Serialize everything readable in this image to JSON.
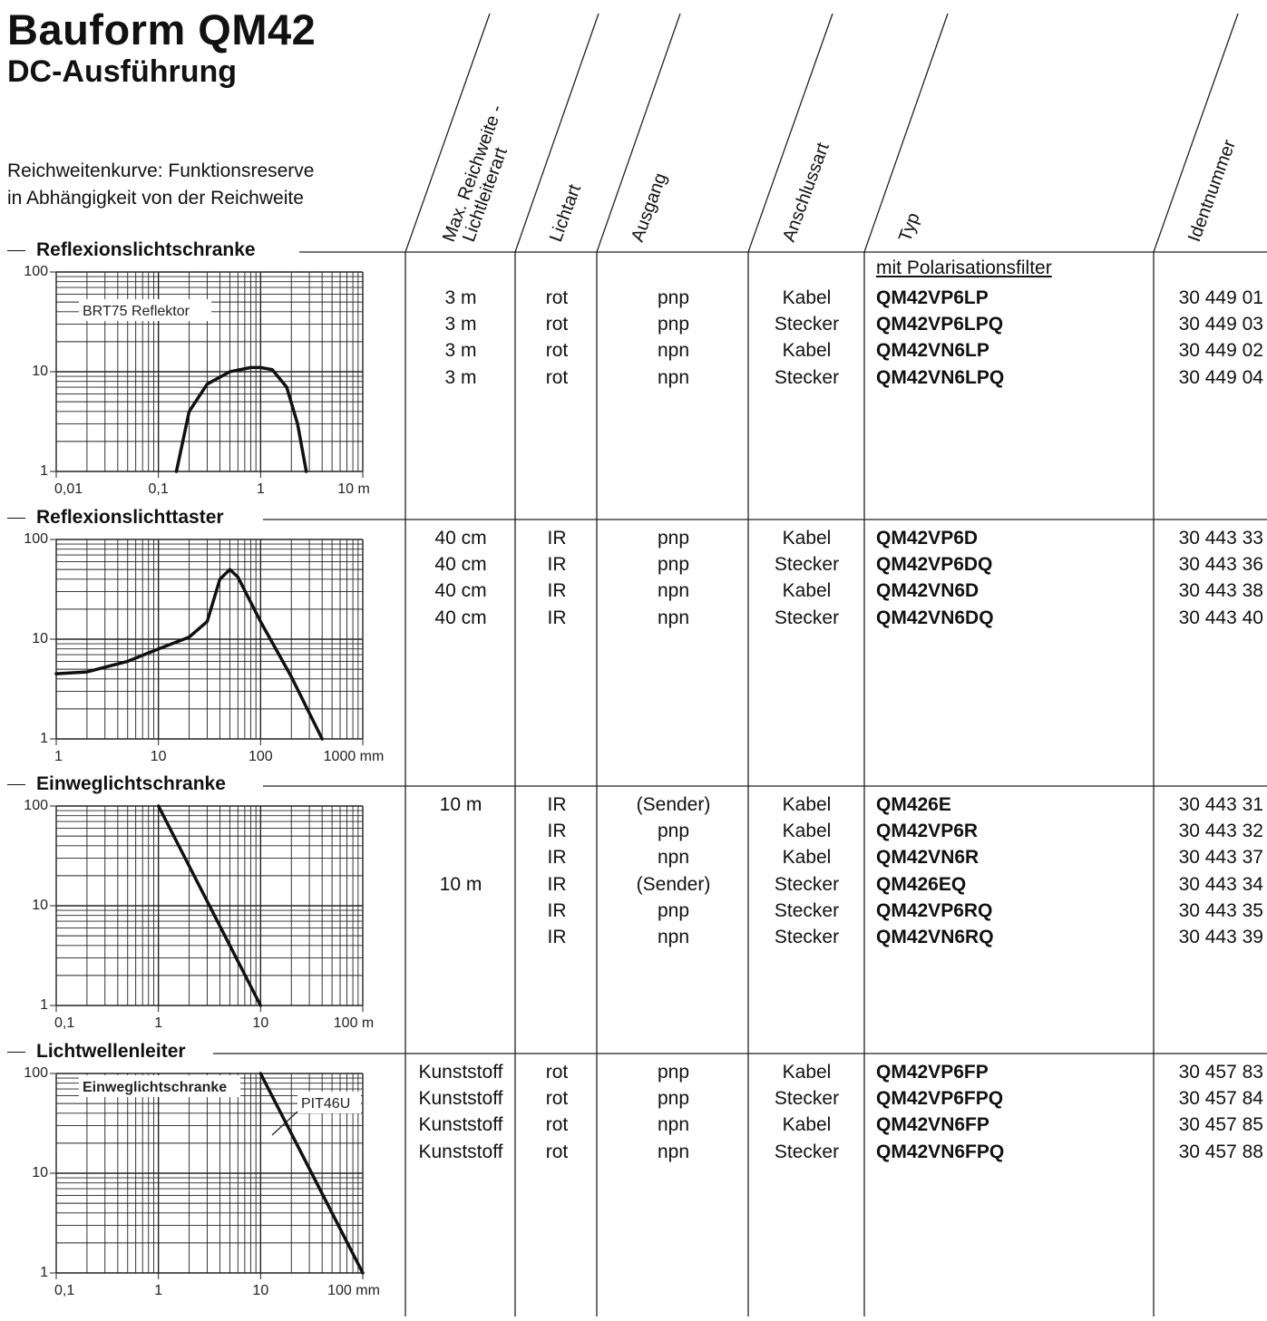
{
  "header": {
    "title": "Bauform QM42",
    "subtitle": "DC-Ausführung",
    "intro_line1": "Reichweitenkurve: Funktionsreserve",
    "intro_line2": "in Abhängigkeit von der Reichweite"
  },
  "columns": {
    "reach_1": "Max. Reichweite -",
    "reach_2": "Lichtleiterart",
    "light": "Lichtart",
    "output": "Ausgang",
    "connection": "Anschlussart",
    "type": "Typ",
    "id": "Identnummer"
  },
  "sections": [
    {
      "name": "Reflexionslichtschranke",
      "note": "mit Polarisationsfilter",
      "rows": [
        {
          "reach": "3 m",
          "light": "rot",
          "output": "pnp",
          "connection": "Kabel",
          "type": "QM42VP6LP",
          "id": "30 449 01"
        },
        {
          "reach": "3 m",
          "light": "rot",
          "output": "pnp",
          "connection": "Stecker",
          "type": "QM42VP6LPQ",
          "id": "30 449 03"
        },
        {
          "reach": "3 m",
          "light": "rot",
          "output": "npn",
          "connection": "Kabel",
          "type": "QM42VN6LP",
          "id": "30 449 02"
        },
        {
          "reach": "3 m",
          "light": "rot",
          "output": "npn",
          "connection": "Stecker",
          "type": "QM42VN6LPQ",
          "id": "30 449 04"
        }
      ]
    },
    {
      "name": "Reflexionslichttaster",
      "rows": [
        {
          "reach": "40 cm",
          "light": "IR",
          "output": "pnp",
          "connection": "Kabel",
          "type": "QM42VP6D",
          "id": "30 443 33"
        },
        {
          "reach": "40 cm",
          "light": "IR",
          "output": "pnp",
          "connection": "Stecker",
          "type": "QM42VP6DQ",
          "id": "30 443 36"
        },
        {
          "reach": "40 cm",
          "light": "IR",
          "output": "npn",
          "connection": "Kabel",
          "type": "QM42VN6D",
          "id": "30 443 38"
        },
        {
          "reach": "40 cm",
          "light": "IR",
          "output": "npn",
          "connection": "Stecker",
          "type": "QM42VN6DQ",
          "id": "30 443 40"
        }
      ]
    },
    {
      "name": "Einweglichtschranke",
      "rows": [
        {
          "reach": "10 m",
          "light": "IR",
          "output": "(Sender)",
          "connection": "Kabel",
          "type": "QM426E",
          "id": "30 443 31"
        },
        {
          "reach": "",
          "light": "IR",
          "output": "pnp",
          "connection": "Kabel",
          "type": "QM42VP6R",
          "id": "30 443 32"
        },
        {
          "reach": "",
          "light": "IR",
          "output": "npn",
          "connection": "Kabel",
          "type": "QM42VN6R",
          "id": "30 443 37"
        },
        {
          "reach": "10 m",
          "light": "IR",
          "output": "(Sender)",
          "connection": "Stecker",
          "type": "QM426EQ",
          "id": "30 443 34"
        },
        {
          "reach": "",
          "light": "IR",
          "output": "pnp",
          "connection": "Stecker",
          "type": "QM42VP6RQ",
          "id": "30 443 35"
        },
        {
          "reach": "",
          "light": "IR",
          "output": "npn",
          "connection": "Stecker",
          "type": "QM42VN6RQ",
          "id": "30 443 39"
        }
      ]
    },
    {
      "name": "Lichtwellenleiter",
      "rows": [
        {
          "reach": "Kunststoff",
          "light": "rot",
          "output": "pnp",
          "connection": "Kabel",
          "type": "QM42VP6FP",
          "id": "30 457 83"
        },
        {
          "reach": "Kunststoff",
          "light": "rot",
          "output": "pnp",
          "connection": "Stecker",
          "type": "QM42VP6FPQ",
          "id": "30 457 84"
        },
        {
          "reach": "Kunststoff",
          "light": "rot",
          "output": "npn",
          "connection": "Kabel",
          "type": "QM42VN6FP",
          "id": "30 457 85"
        },
        {
          "reach": "Kunststoff",
          "light": "rot",
          "output": "npn",
          "connection": "Stecker",
          "type": "QM42VN6FPQ",
          "id": "30 457 88"
        }
      ]
    }
  ],
  "chart_data": [
    {
      "type": "line",
      "section": "Reflexionslichtschranke",
      "xscale": "log",
      "yscale": "log",
      "xlim": [
        0.01,
        10
      ],
      "ylim": [
        1,
        100
      ],
      "xticks": [
        "0,01",
        "0,1",
        "1",
        "10 m"
      ],
      "yticks": [
        "1",
        "10",
        "100"
      ],
      "annotation": "BRT75 Reflektor",
      "x": [
        0.15,
        0.2,
        0.3,
        0.5,
        0.8,
        1.0,
        1.3,
        1.8,
        2.3,
        2.8
      ],
      "y": [
        1,
        4,
        7.5,
        10,
        11,
        11,
        10.5,
        7,
        3,
        1
      ]
    },
    {
      "type": "line",
      "section": "Reflexionslichttaster",
      "xscale": "log",
      "yscale": "log",
      "xlim": [
        1,
        1000
      ],
      "ylim": [
        1,
        100
      ],
      "xticks": [
        "1",
        "10",
        "100",
        "1000 mm"
      ],
      "yticks": [
        "1",
        "10",
        "100"
      ],
      "x": [
        1,
        2,
        5,
        10,
        20,
        30,
        40,
        50,
        60,
        100,
        200,
        400
      ],
      "y": [
        4.5,
        4.7,
        6,
        8,
        10.5,
        15,
        40,
        50,
        42,
        15,
        4.2,
        1
      ]
    },
    {
      "type": "line",
      "section": "Einweglichtschranke",
      "xscale": "log",
      "yscale": "log",
      "xlim": [
        0.1,
        100
      ],
      "ylim": [
        1,
        100
      ],
      "xticks": [
        "0,1",
        "1",
        "10",
        "100 m"
      ],
      "yticks": [
        "1",
        "10",
        "100"
      ],
      "x": [
        1,
        10
      ],
      "y": [
        100,
        1
      ]
    },
    {
      "type": "line",
      "section": "Lichtwellenleiter",
      "xscale": "log",
      "yscale": "log",
      "xlim": [
        0.1,
        100
      ],
      "ylim": [
        1,
        100
      ],
      "xticks": [
        "0,1",
        "1",
        "10",
        "100 mm"
      ],
      "yticks": [
        "1",
        "10",
        "100"
      ],
      "annotation": "Einweglichtschranke",
      "series_label": "PIT46U",
      "x": [
        10,
        100
      ],
      "y": [
        100,
        1
      ]
    }
  ]
}
